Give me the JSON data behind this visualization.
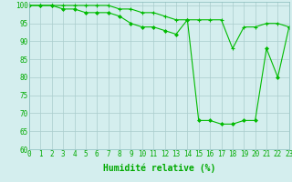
{
  "xlabel": "Humidité relative (%)",
  "x_values": [
    0,
    1,
    2,
    3,
    4,
    5,
    6,
    7,
    8,
    9,
    10,
    11,
    12,
    13,
    14,
    15,
    16,
    17,
    18,
    19,
    20,
    21,
    22,
    23
  ],
  "line1": [
    100,
    100,
    100,
    100,
    100,
    100,
    100,
    100,
    99,
    99,
    98,
    98,
    97,
    96,
    96,
    96,
    96,
    96,
    88,
    94,
    94,
    95,
    95,
    94
  ],
  "line2": [
    100,
    100,
    100,
    99,
    99,
    98,
    98,
    98,
    97,
    95,
    94,
    94,
    93,
    92,
    96,
    68,
    68,
    67,
    67,
    68,
    68,
    88,
    80,
    94
  ],
  "background_color": "#d4eeee",
  "grid_color": "#aacccc",
  "line_color": "#00bb00",
  "xlim": [
    0,
    23
  ],
  "ylim": [
    60,
    101
  ],
  "yticks": [
    60,
    65,
    70,
    75,
    80,
    85,
    90,
    95,
    100
  ],
  "xticks": [
    0,
    1,
    2,
    3,
    4,
    5,
    6,
    7,
    8,
    9,
    10,
    11,
    12,
    13,
    14,
    15,
    16,
    17,
    18,
    19,
    20,
    21,
    22,
    23
  ],
  "tick_fontsize": 5.5,
  "label_fontsize": 7
}
